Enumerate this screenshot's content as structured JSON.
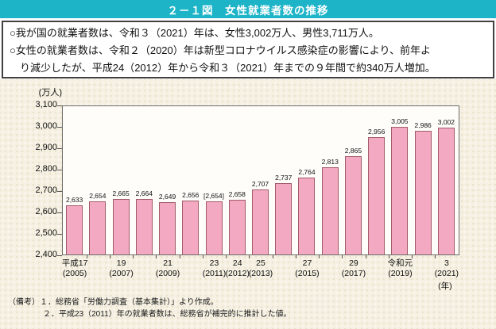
{
  "title": "２－１図　女性就業者数の推移",
  "summary": {
    "bullet1": "○我が国の就業者数は、令和３（2021）年は、女性3,002万人、男性3,711万人。",
    "bullet2_line1": "○女性の就業者数は、令和２（2020）年は新型コロナウイルス感染症の影響により、前年よ",
    "bullet2_line2": "り減少したが、平成24（2012）年から令和３（2021）年までの９年間で約340万人増加。"
  },
  "chart_data": {
    "type": "bar",
    "title": "女性就業者数の推移",
    "unit_label": "(万人)",
    "ylabel": "万人",
    "ylim": [
      2400,
      3100
    ],
    "ytick_step": 100,
    "ytick_labels": [
      "3,100",
      "3,000",
      "2,900",
      "2,800",
      "2,700",
      "2,600",
      "2,500",
      "2,400"
    ],
    "grid": false,
    "legend_position": "none",
    "years": [
      2005,
      2006,
      2007,
      2008,
      2009,
      2010,
      2011,
      2012,
      2013,
      2014,
      2015,
      2016,
      2017,
      2018,
      2019,
      2020,
      2021
    ],
    "values": [
      2633,
      2654,
      2665,
      2664,
      2649,
      2656,
      2654,
      2658,
      2707,
      2737,
      2764,
      2813,
      2865,
      2956,
      3005,
      2986,
      3002
    ],
    "value_labels": [
      "2,633",
      "2,654",
      "2,665",
      "2,664",
      "2,649",
      "2,656",
      "[2,654]",
      "2,658",
      "2,707",
      "2,737",
      "2,764",
      "2,813",
      "2,865",
      "2,956",
      "3,005",
      "2,986",
      "3,002"
    ],
    "x_axis_labels": [
      {
        "slot": 0,
        "era": "平成17",
        "year": "(2005)"
      },
      {
        "slot": 2,
        "era": "19",
        "year": "(2007)"
      },
      {
        "slot": 4,
        "era": "21",
        "year": "(2009)"
      },
      {
        "slot": 6,
        "era": "23",
        "year": "(2011)"
      },
      {
        "slot": 7,
        "era": "24",
        "year": "(2012)"
      },
      {
        "slot": 8,
        "era": "25",
        "year": "(2013)"
      },
      {
        "slot": 10,
        "era": "27",
        "year": "(2015)"
      },
      {
        "slot": 12,
        "era": "29",
        "year": "(2017)"
      },
      {
        "slot": 14,
        "era": "令和元",
        "year": "(2019)"
      },
      {
        "slot": 16,
        "era": "3",
        "year": "(2021)"
      }
    ],
    "x_unit_label": "(年)",
    "bar_fill": "#f4a9c2",
    "bar_border": "#a05a68"
  },
  "notes": {
    "prefix": "（備考）",
    "note1": "１．総務省「労働力調査（基本集計）」より作成。",
    "note2": "２．平成23（2011）年の就業者数は、総務省が補完的に推計した値。"
  },
  "colors": {
    "title_bar": "#1db4c8",
    "panel_background": "#f5f0e1",
    "plot_background": "#fefdf9",
    "box_border": "#404040",
    "plot_border": "#6b6b6b"
  }
}
